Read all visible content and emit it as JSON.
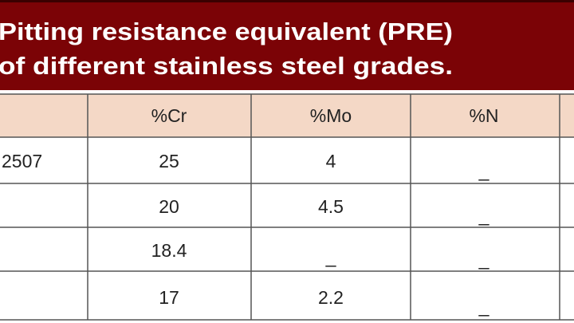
{
  "header": {
    "title_lines": [
      "Pitting resistance equivalent (PRE)",
      "of different stainless steel grades."
    ]
  },
  "table": {
    "columns": [
      "%Cr",
      "%Mo",
      "%N"
    ],
    "rows": [
      {
        "grade": "2507",
        "cr": 25,
        "mo": 4,
        "n": "_"
      },
      {
        "cr": 20,
        "mo": 4.5,
        "n": "_"
      },
      {
        "cr": 18.4,
        "mo": "_",
        "n": "_"
      },
      {
        "cr": 17,
        "mo": 2.2,
        "n": "_"
      }
    ]
  }
}
